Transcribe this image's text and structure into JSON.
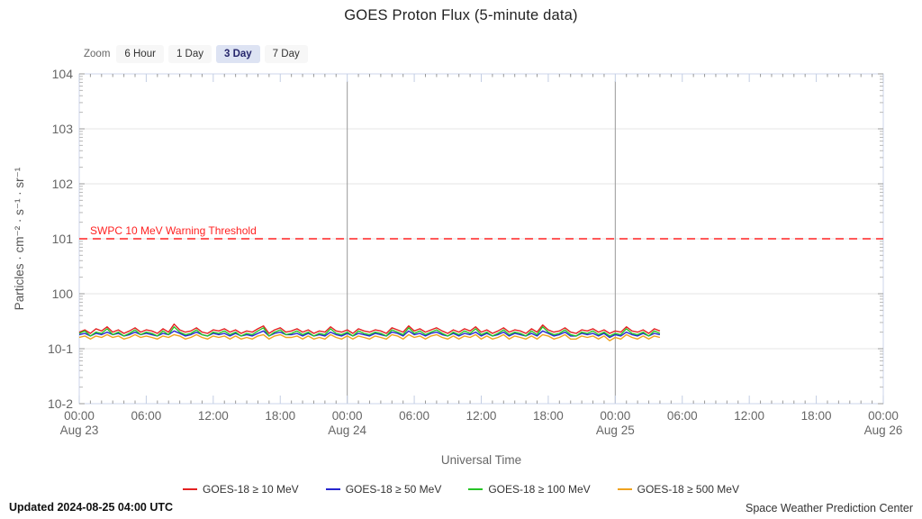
{
  "title": "GOES Proton Flux (5‑minute data)",
  "zoom_selector": {
    "label": "Zoom",
    "buttons": [
      {
        "label": "6 Hour",
        "selected": false
      },
      {
        "label": "1 Day",
        "selected": false
      },
      {
        "label": "3 Day",
        "selected": true
      },
      {
        "label": "7 Day",
        "selected": false
      }
    ]
  },
  "threshold": {
    "label": "SWPC 10 MeV Warning Threshold",
    "value": 10,
    "color": "#ff2222"
  },
  "legend": [
    {
      "label": "GOES-18 ≥ 10 MeV",
      "color": "#e32222"
    },
    {
      "label": "GOES-18 ≥ 50 MeV",
      "color": "#2626cf"
    },
    {
      "label": "GOES-18 ≥ 100 MeV",
      "color": "#27c427"
    },
    {
      "label": "GOES-18 ≥ 500 MeV",
      "color": "#efa21e"
    }
  ],
  "footer": {
    "updated": "Updated 2024-08-25 04:00 UTC",
    "credit": "Space Weather Prediction Center"
  },
  "chart_data": {
    "type": "line",
    "title": "GOES Proton Flux (5-minute data)",
    "xlabel": "Universal Time",
    "ylabel": "Particles · cm⁻² · s⁻¹ · sr⁻¹",
    "y_scale": "log",
    "ylim": [
      0.01,
      10000
    ],
    "y_ticks": [
      {
        "value": 10000,
        "label": "104"
      },
      {
        "value": 1000,
        "label": "103"
      },
      {
        "value": 100,
        "label": "102"
      },
      {
        "value": 10,
        "label": "101"
      },
      {
        "value": 1,
        "label": "100"
      },
      {
        "value": 0.1,
        "label": "10-1"
      },
      {
        "value": 0.01,
        "label": "10-2"
      }
    ],
    "x_range_hours": [
      0,
      72
    ],
    "x_ticks": [
      {
        "hour": 0,
        "time": "00:00",
        "date": "Aug 23"
      },
      {
        "hour": 6,
        "time": "06:00"
      },
      {
        "hour": 12,
        "time": "12:00"
      },
      {
        "hour": 18,
        "time": "18:00"
      },
      {
        "hour": 24,
        "time": "00:00",
        "date": "Aug 24"
      },
      {
        "hour": 30,
        "time": "06:00"
      },
      {
        "hour": 36,
        "time": "12:00"
      },
      {
        "hour": 42,
        "time": "18:00"
      },
      {
        "hour": 48,
        "time": "00:00",
        "date": "Aug 25"
      },
      {
        "hour": 54,
        "time": "06:00"
      },
      {
        "hour": 60,
        "time": "12:00"
      },
      {
        "hour": 66,
        "time": "18:00"
      },
      {
        "hour": 72,
        "time": "00:00",
        "date": "Aug 26"
      }
    ],
    "day_gridlines_hours": [
      24,
      48
    ],
    "threshold_value": 10,
    "x_start_hour": 0,
    "x_step_hours": 0.5,
    "series": [
      {
        "name": "GOES-18 ≥ 10 MeV",
        "color": "#e32222",
        "values": [
          0.2,
          0.22,
          0.19,
          0.23,
          0.21,
          0.25,
          0.2,
          0.22,
          0.19,
          0.21,
          0.24,
          0.2,
          0.22,
          0.21,
          0.19,
          0.23,
          0.2,
          0.28,
          0.22,
          0.2,
          0.21,
          0.24,
          0.2,
          0.19,
          0.22,
          0.21,
          0.23,
          0.2,
          0.22,
          0.19,
          0.21,
          0.2,
          0.23,
          0.26,
          0.19,
          0.22,
          0.24,
          0.2,
          0.21,
          0.23,
          0.2,
          0.22,
          0.19,
          0.21,
          0.2,
          0.25,
          0.21,
          0.2,
          0.22,
          0.19,
          0.23,
          0.21,
          0.2,
          0.22,
          0.21,
          0.19,
          0.24,
          0.22,
          0.2,
          0.26,
          0.21,
          0.23,
          0.2,
          0.22,
          0.24,
          0.21,
          0.19,
          0.22,
          0.2,
          0.23,
          0.21,
          0.25,
          0.2,
          0.22,
          0.19,
          0.21,
          0.24,
          0.2,
          0.22,
          0.21,
          0.19,
          0.23,
          0.2,
          0.27,
          0.22,
          0.2,
          0.21,
          0.24,
          0.2,
          0.19,
          0.22,
          0.21,
          0.23,
          0.2,
          0.22,
          0.19,
          0.21,
          0.2,
          0.25,
          0.21,
          0.2,
          0.22,
          0.19,
          0.23,
          0.21
        ]
      },
      {
        "name": "GOES-18 ≥ 50 MeV",
        "color": "#2626cf",
        "values": [
          0.18,
          0.19,
          0.17,
          0.19,
          0.18,
          0.2,
          0.18,
          0.19,
          0.17,
          0.18,
          0.2,
          0.18,
          0.19,
          0.18,
          0.17,
          0.19,
          0.18,
          0.21,
          0.19,
          0.17,
          0.18,
          0.2,
          0.18,
          0.17,
          0.19,
          0.18,
          0.19,
          0.17,
          0.19,
          0.17,
          0.18,
          0.17,
          0.19,
          0.21,
          0.17,
          0.19,
          0.2,
          0.18,
          0.18,
          0.19,
          0.17,
          0.19,
          0.17,
          0.18,
          0.17,
          0.2,
          0.18,
          0.17,
          0.19,
          0.17,
          0.19,
          0.18,
          0.17,
          0.19,
          0.18,
          0.17,
          0.2,
          0.19,
          0.17,
          0.21,
          0.18,
          0.19,
          0.17,
          0.19,
          0.2,
          0.18,
          0.17,
          0.19,
          0.17,
          0.19,
          0.18,
          0.2,
          0.17,
          0.19,
          0.17,
          0.18,
          0.2,
          0.17,
          0.19,
          0.18,
          0.17,
          0.19,
          0.17,
          0.21,
          0.19,
          0.17,
          0.18,
          0.2,
          0.17,
          0.17,
          0.19,
          0.18,
          0.19,
          0.17,
          0.19,
          0.16,
          0.18,
          0.17,
          0.2,
          0.18,
          0.17,
          0.19,
          0.17,
          0.19,
          0.18
        ]
      },
      {
        "name": "GOES-18 ≥ 100 MeV",
        "color": "#27c427",
        "values": [
          0.19,
          0.21,
          0.17,
          0.2,
          0.19,
          0.23,
          0.18,
          0.2,
          0.17,
          0.19,
          0.22,
          0.18,
          0.2,
          0.19,
          0.17,
          0.21,
          0.18,
          0.25,
          0.2,
          0.18,
          0.19,
          0.22,
          0.18,
          0.17,
          0.2,
          0.19,
          0.21,
          0.18,
          0.2,
          0.17,
          0.19,
          0.18,
          0.21,
          0.24,
          0.17,
          0.2,
          0.22,
          0.18,
          0.19,
          0.21,
          0.18,
          0.2,
          0.17,
          0.19,
          0.18,
          0.23,
          0.19,
          0.18,
          0.2,
          0.17,
          0.21,
          0.19,
          0.18,
          0.2,
          0.19,
          0.17,
          0.22,
          0.2,
          0.18,
          0.24,
          0.19,
          0.21,
          0.18,
          0.2,
          0.22,
          0.19,
          0.17,
          0.2,
          0.18,
          0.21,
          0.19,
          0.23,
          0.18,
          0.2,
          0.17,
          0.19,
          0.22,
          0.18,
          0.2,
          0.19,
          0.17,
          0.21,
          0.18,
          0.25,
          0.2,
          0.18,
          0.19,
          0.22,
          0.18,
          0.17,
          0.2,
          0.19,
          0.21,
          0.18,
          0.2,
          0.17,
          0.19,
          0.18,
          0.23,
          0.19,
          0.18,
          0.2,
          0.17,
          0.21,
          0.19
        ]
      },
      {
        "name": "GOES-18 ≥ 500 MeV",
        "color": "#efa21e",
        "values": [
          0.16,
          0.17,
          0.15,
          0.17,
          0.16,
          0.18,
          0.16,
          0.17,
          0.15,
          0.16,
          0.18,
          0.16,
          0.17,
          0.16,
          0.15,
          0.17,
          0.16,
          0.18,
          0.17,
          0.15,
          0.16,
          0.18,
          0.16,
          0.15,
          0.17,
          0.16,
          0.17,
          0.15,
          0.17,
          0.15,
          0.16,
          0.15,
          0.17,
          0.18,
          0.15,
          0.17,
          0.18,
          0.16,
          0.16,
          0.17,
          0.15,
          0.17,
          0.15,
          0.16,
          0.15,
          0.18,
          0.16,
          0.15,
          0.17,
          0.15,
          0.17,
          0.16,
          0.15,
          0.17,
          0.16,
          0.15,
          0.18,
          0.17,
          0.15,
          0.18,
          0.16,
          0.17,
          0.15,
          0.17,
          0.18,
          0.16,
          0.15,
          0.17,
          0.15,
          0.17,
          0.16,
          0.18,
          0.15,
          0.17,
          0.15,
          0.16,
          0.18,
          0.15,
          0.17,
          0.16,
          0.15,
          0.17,
          0.15,
          0.18,
          0.17,
          0.15,
          0.16,
          0.18,
          0.15,
          0.15,
          0.17,
          0.16,
          0.17,
          0.15,
          0.17,
          0.14,
          0.16,
          0.15,
          0.18,
          0.16,
          0.15,
          0.17,
          0.15,
          0.17,
          0.16
        ]
      }
    ]
  }
}
